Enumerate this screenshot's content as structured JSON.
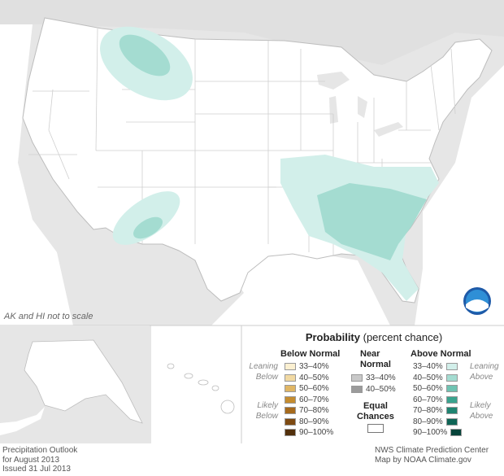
{
  "note": "AK and HI not to scale",
  "legend": {
    "title_bold": "Probability",
    "title_rest": " (percent chance)",
    "below": {
      "heading": "Below Normal",
      "leaning": [
        "Leaning",
        "Below"
      ],
      "likely": [
        "Likely",
        "Below"
      ],
      "rows": [
        {
          "label": "33–40%",
          "color": "#fbf0d1"
        },
        {
          "label": "40–50%",
          "color": "#f1d9a3"
        },
        {
          "label": "50–60%",
          "color": "#e0b665"
        },
        {
          "label": "60–70%",
          "color": "#c58c2f"
        },
        {
          "label": "70–80%",
          "color": "#a66a1d"
        },
        {
          "label": "80–90%",
          "color": "#7d4a12"
        },
        {
          "label": "90–100%",
          "color": "#52300c"
        }
      ]
    },
    "near": {
      "heading": [
        "Near",
        "Normal"
      ],
      "rows": [
        {
          "label": "33–40%",
          "color": "#c8c8c8"
        },
        {
          "label": "40–50%",
          "color": "#9b9b9b"
        }
      ]
    },
    "equal": [
      "Equal",
      "Chances"
    ],
    "above": {
      "heading": "Above Normal",
      "leaning": [
        "Leaning",
        "Above"
      ],
      "likely": [
        "Likely",
        "Above"
      ],
      "rows": [
        {
          "label": "33–40%",
          "color": "#d2efea"
        },
        {
          "label": "40–50%",
          "color": "#a4dcd1"
        },
        {
          "label": "50–60%",
          "color": "#6fc3b2"
        },
        {
          "label": "60–70%",
          "color": "#3aa38e"
        },
        {
          "label": "70–80%",
          "color": "#1f8471"
        },
        {
          "label": "80–90%",
          "color": "#0f6556"
        },
        {
          "label": "90–100%",
          "color": "#06433a"
        }
      ]
    }
  },
  "footer_left": [
    "Precipitation Outlook",
    "for August 2013",
    "Issued 31 Jul 2013"
  ],
  "footer_right": [
    "NWS Climate Prediction Center",
    "Map by NOAA Climate.gov"
  ],
  "logo_text": "NOAA",
  "colors": {
    "land": "#ffffff",
    "neighbor": "#e6e6e6",
    "border": "#c9c9c9",
    "lean_above": "#d2efea",
    "above_40": "#a4dcd1"
  }
}
